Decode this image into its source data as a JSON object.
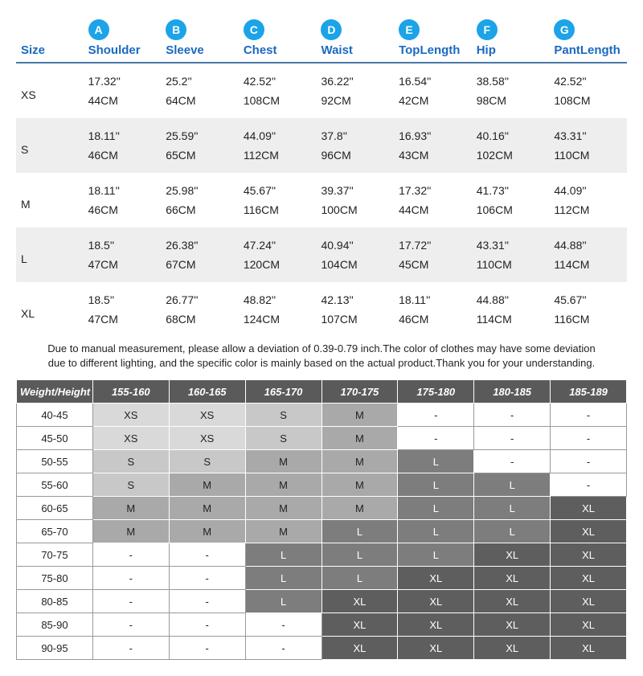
{
  "colors": {
    "header_text": "#1b69c0",
    "badge_bg": "#1ca3e8",
    "rule": "#4a7aa8",
    "stripe": "#eeeeee",
    "wh_header_bg": "#5a5a5a",
    "xs": "#d9d9d9",
    "s": "#c8c8c8",
    "m": "#a9a9a9",
    "l": "#7d7d7d",
    "xl": "#5e5e5e"
  },
  "measurements": {
    "size_header": "Size",
    "columns": [
      {
        "badge": "A",
        "label": "Shoulder"
      },
      {
        "badge": "B",
        "label": "Sleeve"
      },
      {
        "badge": "C",
        "label": "Chest"
      },
      {
        "badge": "D",
        "label": "Waist"
      },
      {
        "badge": "E",
        "label": "TopLength"
      },
      {
        "badge": "F",
        "label": "Hip"
      },
      {
        "badge": "G",
        "label": "PantLength"
      }
    ],
    "rows": [
      {
        "size": "XS",
        "inches": [
          "17.32''",
          "25.2''",
          "42.52''",
          "36.22''",
          "16.54''",
          "38.58''",
          "42.52''"
        ],
        "cm": [
          "44CM",
          "64CM",
          "108CM",
          "92CM",
          "42CM",
          "98CM",
          "108CM"
        ]
      },
      {
        "size": "S",
        "inches": [
          "18.11''",
          "25.59''",
          "44.09''",
          "37.8''",
          "16.93''",
          "40.16''",
          "43.31''"
        ],
        "cm": [
          "46CM",
          "65CM",
          "112CM",
          "96CM",
          "43CM",
          "102CM",
          "110CM"
        ]
      },
      {
        "size": "M",
        "inches": [
          "18.11''",
          "25.98''",
          "45.67''",
          "39.37''",
          "17.32''",
          "41.73''",
          "44.09''"
        ],
        "cm": [
          "46CM",
          "66CM",
          "116CM",
          "100CM",
          "44CM",
          "106CM",
          "112CM"
        ]
      },
      {
        "size": "L",
        "inches": [
          "18.5''",
          "26.38''",
          "47.24''",
          "40.94''",
          "17.72''",
          "43.31''",
          "44.88''"
        ],
        "cm": [
          "47CM",
          "67CM",
          "120CM",
          "104CM",
          "45CM",
          "110CM",
          "114CM"
        ]
      },
      {
        "size": "XL",
        "inches": [
          "18.5''",
          "26.77''",
          "48.82''",
          "42.13''",
          "18.11''",
          "44.88''",
          "45.67''"
        ],
        "cm": [
          "47CM",
          "68CM",
          "124CM",
          "107CM",
          "46CM",
          "114CM",
          "116CM"
        ]
      }
    ]
  },
  "note": "Due to manual measurement, please allow a deviation of 0.39-0.79 inch.The color of clothes may have some deviation due to different lighting, and the specific color is mainly based on the actual product.Thank you for your understanding.",
  "weight_height": {
    "corner": "Weight/Height",
    "heights": [
      "155-160",
      "160-165",
      "165-170",
      "170-175",
      "175-180",
      "180-185",
      "185-189"
    ],
    "rows": [
      {
        "w": "40-45",
        "cells": [
          "XS",
          "XS",
          "S",
          "M",
          "-",
          "-",
          "-"
        ]
      },
      {
        "w": "45-50",
        "cells": [
          "XS",
          "XS",
          "S",
          "M",
          "-",
          "-",
          "-"
        ]
      },
      {
        "w": "50-55",
        "cells": [
          "S",
          "S",
          "M",
          "M",
          "L",
          "-",
          "-"
        ]
      },
      {
        "w": "55-60",
        "cells": [
          "S",
          "M",
          "M",
          "M",
          "L",
          "L",
          "-"
        ]
      },
      {
        "w": "60-65",
        "cells": [
          "M",
          "M",
          "M",
          "M",
          "L",
          "L",
          "XL"
        ]
      },
      {
        "w": "65-70",
        "cells": [
          "M",
          "M",
          "M",
          "L",
          "L",
          "L",
          "XL"
        ]
      },
      {
        "w": "70-75",
        "cells": [
          "-",
          "-",
          "L",
          "L",
          "L",
          "XL",
          "XL"
        ]
      },
      {
        "w": "75-80",
        "cells": [
          "-",
          "-",
          "L",
          "L",
          "XL",
          "XL",
          "XL"
        ]
      },
      {
        "w": "80-85",
        "cells": [
          "-",
          "-",
          "L",
          "XL",
          "XL",
          "XL",
          "XL"
        ]
      },
      {
        "w": "85-90",
        "cells": [
          "-",
          "-",
          "-",
          "XL",
          "XL",
          "XL",
          "XL"
        ]
      },
      {
        "w": "90-95",
        "cells": [
          "-",
          "-",
          "-",
          "XL",
          "XL",
          "XL",
          "XL"
        ]
      }
    ]
  }
}
